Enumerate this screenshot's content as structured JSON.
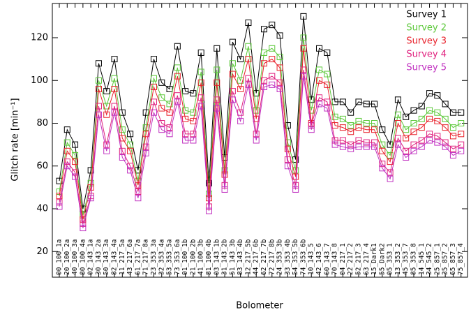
{
  "chart_data": {
    "type": "line",
    "xlabel": "Bolometer",
    "ylabel": "Glitch rate [min⁻¹]",
    "categories": [
      "00_100_1a",
      "20_100_2a",
      "40_100_3a",
      "80_100_4a",
      "02_143_1a",
      "30_143_2a",
      "50_143_3a",
      "82_143_4a",
      "11_217_5a",
      "43_217_6a",
      "61_217_7a",
      "71_217_8a",
      "23_353_3a",
      "32_353_4a",
      "53_353_5a",
      "73_353_6a",
      "01_100_1b",
      "21_100_2b",
      "41_100_3b",
      "81_100_4b",
      "03_143_1b",
      "31_143_2b",
      "51_143_3b",
      "83_143_4b",
      "12_217_5b",
      "44_217_6b",
      "62_217_7b",
      "72_217_8b",
      "24_353_3b",
      "33_353_4b",
      "54_353_5b",
      "74_353_6b",
      "10_143_5",
      "42_143_6",
      "60_143_7",
      "70_143_8",
      "04_217_1",
      "22_217_2",
      "52_217_3",
      "63_217_4",
      "15_Dark1",
      "55_Dark2",
      "05_353_1",
      "13_353_2",
      "45_353_7",
      "85_353_8",
      "14_545_1",
      "34_545_2",
      "25_857_1",
      "35_857_2",
      "65_857_3",
      "75_857_4"
    ],
    "series": [
      {
        "name": "Survey 1",
        "color": "#000000",
        "values": [
          53,
          77,
          70,
          40,
          58,
          108,
          95,
          110,
          85,
          75,
          58,
          85,
          110,
          99,
          96,
          116,
          95,
          94,
          113,
          52,
          115,
          64,
          118,
          110,
          127,
          94,
          124,
          126,
          121,
          79,
          63,
          130,
          91,
          115,
          113,
          90,
          90,
          85,
          90,
          89,
          89,
          77,
          70,
          91,
          83,
          86,
          88,
          94,
          93,
          89,
          85,
          85
        ]
      },
      {
        "name": "Survey 2",
        "color": "#5cc83a",
        "values": [
          48,
          71,
          65,
          37,
          52,
          100,
          88,
          101,
          77,
          70,
          53,
          78,
          101,
          92,
          89,
          106,
          86,
          85,
          104,
          47,
          105,
          58,
          108,
          100,
          116,
          86,
          113,
          115,
          111,
          71,
          58,
          120,
          86,
          105,
          103,
          83,
          82,
          79,
          81,
          80,
          80,
          70,
          65,
          84,
          77,
          80,
          82,
          86,
          85,
          82,
          78,
          80
        ]
      },
      {
        "name": "Survey 3",
        "color": "#e8202a",
        "values": [
          46,
          67,
          62,
          35,
          50,
          96,
          84,
          96,
          73,
          67,
          51,
          75,
          97,
          87,
          85,
          102,
          82,
          81,
          99,
          45,
          99,
          56,
          103,
          96,
          110,
          82,
          108,
          110,
          106,
          68,
          55,
          115,
          80,
          100,
          98,
          79,
          78,
          76,
          78,
          77,
          77,
          67,
          62,
          80,
          73,
          76,
          78,
          82,
          81,
          78,
          74,
          75
        ]
      },
      {
        "name": "Survey 4",
        "color": "#e0207e",
        "values": [
          43,
          62,
          57,
          33,
          46,
          88,
          70,
          88,
          67,
          60,
          48,
          69,
          90,
          80,
          78,
          93,
          75,
          75,
          92,
          41,
          91,
          51,
          95,
          85,
          101,
          75,
          100,
          102,
          99,
          63,
          51,
          105,
          79,
          92,
          90,
          72,
          72,
          70,
          72,
          71,
          71,
          61,
          57,
          73,
          67,
          70,
          72,
          75,
          74,
          71,
          68,
          70
        ]
      },
      {
        "name": "Survey 5",
        "color": "#c030c0",
        "values": [
          41,
          60,
          55,
          31,
          45,
          84,
          67,
          85,
          64,
          58,
          45,
          66,
          85,
          77,
          75,
          90,
          72,
          72,
          88,
          39,
          87,
          49,
          91,
          81,
          98,
          72,
          97,
          98,
          96,
          60,
          49,
          102,
          77,
          89,
          87,
          70,
          69,
          68,
          69,
          69,
          69,
          59,
          54,
          70,
          64,
          67,
          69,
          72,
          71,
          69,
          65,
          67
        ]
      }
    ],
    "ylim": [
      8,
      136
    ],
    "yticks": [
      20,
      40,
      60,
      80,
      100,
      120
    ],
    "legend": "upper right",
    "marker": "square"
  }
}
